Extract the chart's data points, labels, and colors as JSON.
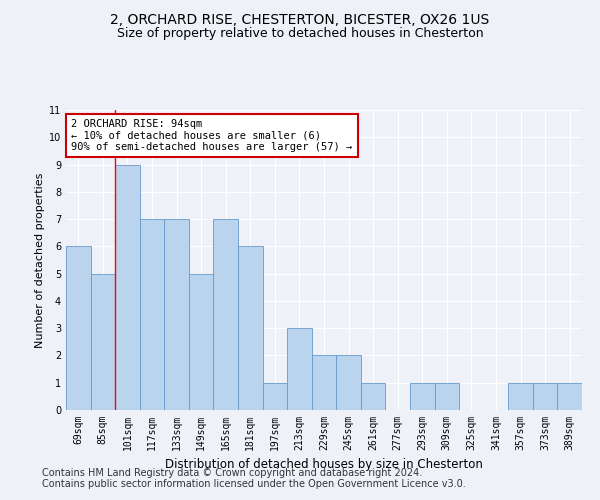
{
  "title1": "2, ORCHARD RISE, CHESTERTON, BICESTER, OX26 1US",
  "title2": "Size of property relative to detached houses in Chesterton",
  "xlabel": "Distribution of detached houses by size in Chesterton",
  "ylabel": "Number of detached properties",
  "categories": [
    "69sqm",
    "85sqm",
    "101sqm",
    "117sqm",
    "133sqm",
    "149sqm",
    "165sqm",
    "181sqm",
    "197sqm",
    "213sqm",
    "229sqm",
    "245sqm",
    "261sqm",
    "277sqm",
    "293sqm",
    "309sqm",
    "325sqm",
    "341sqm",
    "357sqm",
    "373sqm",
    "389sqm"
  ],
  "values": [
    6,
    5,
    9,
    7,
    7,
    5,
    7,
    6,
    1,
    3,
    2,
    2,
    1,
    0,
    1,
    1,
    0,
    0,
    1,
    1,
    1
  ],
  "bar_color": "#bad4ee",
  "bar_edge_color": "#6699cc",
  "red_line_x": 1.5,
  "annotation_text": "2 ORCHARD RISE: 94sqm\n← 10% of detached houses are smaller (6)\n90% of semi-detached houses are larger (57) →",
  "annotation_box_color": "#ffffff",
  "annotation_box_edge": "#cc0000",
  "ylim": [
    0,
    11
  ],
  "yticks": [
    0,
    1,
    2,
    3,
    4,
    5,
    6,
    7,
    8,
    9,
    10,
    11
  ],
  "footer1": "Contains HM Land Registry data © Crown copyright and database right 2024.",
  "footer2": "Contains public sector information licensed under the Open Government Licence v3.0.",
  "bg_color": "#eef2f8",
  "plot_bg_color": "#eef2f8",
  "grid_color": "#ffffff",
  "title1_fontsize": 10,
  "title2_fontsize": 9,
  "xlabel_fontsize": 8.5,
  "ylabel_fontsize": 8,
  "tick_fontsize": 7,
  "footer_fontsize": 7,
  "annotation_fontsize": 7.5
}
